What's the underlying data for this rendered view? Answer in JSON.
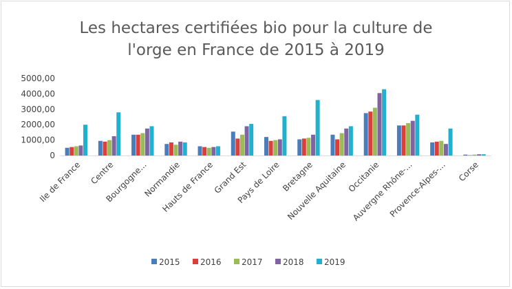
{
  "chart_data": {
    "type": "bar",
    "title_lines": [
      "Les hectares certifiées bio pour la culture de",
      "l'orge en France de 2015 à 2019"
    ],
    "xlabel": "",
    "ylabel": "",
    "ylim": [
      0,
      5000
    ],
    "yticks": [
      "0",
      "1000,00",
      "2000,00",
      "3000,00",
      "4000,00",
      "5000,00"
    ],
    "grid": false,
    "legend_position": "bottom",
    "categories": [
      "Ile de France",
      "Centre",
      "Bourgogne...",
      "Normandie",
      "Hauts de France",
      "Grand Est",
      "Pays de Loire",
      "Bretagne",
      "Nouvelle Aquitaine",
      "Occitanie",
      "Auvergne Rhône-...",
      "Provence-Alpes-...",
      "Corse"
    ],
    "series": [
      {
        "name": "2015",
        "color": "#4a7ebb",
        "values": [
          500,
          950,
          1350,
          750,
          600,
          1550,
          1200,
          1050,
          1350,
          2750,
          1950,
          850,
          60
        ]
      },
      {
        "name": "2016",
        "color": "#d9403c",
        "values": [
          550,
          900,
          1350,
          850,
          550,
          1100,
          950,
          1100,
          1050,
          2850,
          1950,
          900,
          20
        ]
      },
      {
        "name": "2017",
        "color": "#9bbb59",
        "values": [
          600,
          1000,
          1450,
          700,
          500,
          1350,
          1000,
          1150,
          1450,
          3100,
          2100,
          950,
          60
        ]
      },
      {
        "name": "2018",
        "color": "#8064a2",
        "values": [
          650,
          1250,
          1750,
          900,
          550,
          1900,
          1050,
          1350,
          1750,
          4050,
          2250,
          750,
          80
        ]
      },
      {
        "name": "2019",
        "color": "#23b0ce",
        "values": [
          2000,
          2800,
          1900,
          850,
          600,
          2050,
          2550,
          3600,
          1900,
          4300,
          2650,
          1750,
          80
        ]
      }
    ]
  }
}
